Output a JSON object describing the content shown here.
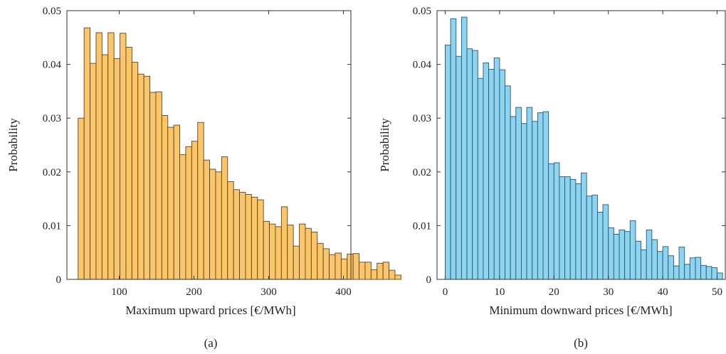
{
  "chart_data": [
    {
      "type": "bar",
      "panel_label": "(a)",
      "xlabel": "Maximum upward prices [€/MWh]",
      "ylabel": "Probability",
      "xlim": [
        30,
        410
      ],
      "ylim": [
        0,
        0.05
      ],
      "xticks": [
        100,
        200,
        300,
        400
      ],
      "yticks": [
        0,
        0.01,
        0.02,
        0.03,
        0.04,
        0.05
      ],
      "ytick_labels": [
        "0",
        "0.01",
        "0.02",
        "0.03",
        "0.04",
        "0.05"
      ],
      "bin_start": 45,
      "bin_width": 8,
      "values": [
        0.03,
        0.0468,
        0.0402,
        0.0459,
        0.0418,
        0.0459,
        0.0411,
        0.0458,
        0.0432,
        0.0404,
        0.0382,
        0.0378,
        0.0348,
        0.0349,
        0.0305,
        0.0283,
        0.0287,
        0.0232,
        0.0247,
        0.0257,
        0.0292,
        0.0222,
        0.0205,
        0.02,
        0.0228,
        0.0182,
        0.0167,
        0.0162,
        0.0158,
        0.0153,
        0.0148,
        0.0108,
        0.0103,
        0.0098,
        0.0135,
        0.0101,
        0.0062,
        0.0103,
        0.0095,
        0.0088,
        0.0067,
        0.0057,
        0.0046,
        0.0049,
        0.0038,
        0.0047,
        0.0048,
        0.0032,
        0.0032,
        0.0018,
        0.003,
        0.0032,
        0.0017,
        0.0008
      ],
      "bar_color": "#fbc66a",
      "edge_color": "#5c4520"
    },
    {
      "type": "bar",
      "panel_label": "(b)",
      "xlabel": "Minimum downward prices [€/MWh]",
      "ylabel": "Probability",
      "xlim": [
        -1.5,
        51.5
      ],
      "ylim": [
        0,
        0.05
      ],
      "xticks": [
        0,
        10,
        20,
        30,
        40,
        50
      ],
      "yticks": [
        0,
        0.01,
        0.02,
        0.03,
        0.04,
        0.05
      ],
      "ytick_labels": [
        "0",
        "0.01",
        "0.02",
        "0.03",
        "0.04",
        "0.05"
      ],
      "bin_start": 0,
      "bin_width": 1,
      "values": [
        0.0436,
        0.0485,
        0.0415,
        0.0488,
        0.0429,
        0.0426,
        0.0374,
        0.0403,
        0.0391,
        0.0412,
        0.039,
        0.036,
        0.0303,
        0.032,
        0.029,
        0.032,
        0.0294,
        0.031,
        0.0312,
        0.0215,
        0.0217,
        0.0191,
        0.0191,
        0.0186,
        0.0178,
        0.0198,
        0.0155,
        0.0157,
        0.0125,
        0.0139,
        0.0096,
        0.0084,
        0.0092,
        0.0089,
        0.0109,
        0.0071,
        0.0055,
        0.0092,
        0.0074,
        0.0052,
        0.0061,
        0.0044,
        0.0025,
        0.006,
        0.0028,
        0.004,
        0.0041,
        0.0026,
        0.0024,
        0.0022,
        0.0012
      ],
      "bar_color": "#8fd4ee",
      "edge_color": "#24587a"
    }
  ]
}
